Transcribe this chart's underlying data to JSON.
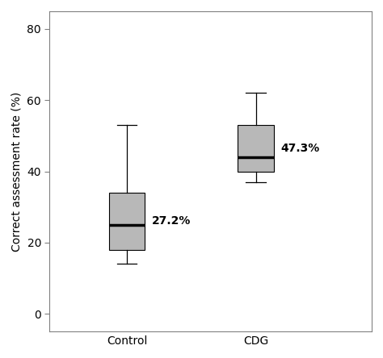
{
  "groups": [
    "Control",
    "CDG"
  ],
  "boxes": [
    {
      "label": "Control",
      "q1": 18,
      "median": 25,
      "q3": 34,
      "whisker_low": 14,
      "whisker_high": 53,
      "annotation": "27.2%",
      "x": 1
    },
    {
      "label": "CDG",
      "q1": 40,
      "median": 44,
      "q3": 53,
      "whisker_low": 37,
      "whisker_high": 62,
      "annotation": "47.3%",
      "x": 2
    }
  ],
  "ylim": [
    -5,
    85
  ],
  "yticks": [
    0,
    20,
    40,
    60,
    80
  ],
  "ylabel": "Correct assessment rate (%)",
  "box_color": "#b8b8b8",
  "median_color": "#000000",
  "whisker_color": "#000000",
  "box_width": 0.28,
  "annotation_fontsize": 10,
  "ylabel_fontsize": 10,
  "tick_fontsize": 10,
  "bg_color": "#ffffff",
  "spine_color": "#808080",
  "xlim": [
    0.4,
    2.9
  ],
  "xtick_positions": [
    1,
    2
  ]
}
